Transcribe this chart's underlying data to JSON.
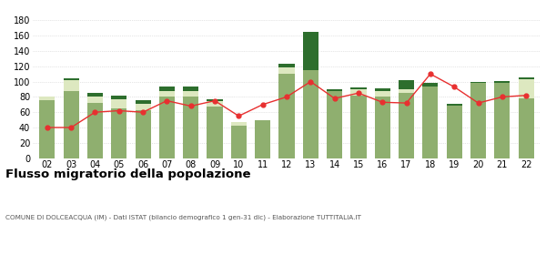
{
  "years": [
    "02",
    "03",
    "04",
    "05",
    "06",
    "07",
    "08",
    "09",
    "10",
    "11",
    "12",
    "13",
    "14",
    "15",
    "16",
    "17",
    "18",
    "19",
    "20",
    "21",
    "22"
  ],
  "iscritti_altri_comuni": [
    76,
    88,
    72,
    65,
    63,
    80,
    80,
    67,
    42,
    50,
    110,
    115,
    88,
    82,
    80,
    85,
    93,
    68,
    98,
    98,
    78
  ],
  "iscritti_estero": [
    5,
    14,
    8,
    12,
    8,
    8,
    8,
    8,
    5,
    0,
    8,
    0,
    0,
    8,
    8,
    5,
    0,
    0,
    0,
    0,
    25
  ],
  "iscritti_altri": [
    0,
    2,
    5,
    5,
    5,
    5,
    5,
    2,
    0,
    0,
    5,
    50,
    2,
    2,
    3,
    12,
    5,
    3,
    2,
    3,
    3
  ],
  "cancellati": [
    40,
    40,
    60,
    62,
    60,
    75,
    68,
    75,
    55,
    70,
    80,
    100,
    78,
    85,
    73,
    72,
    110,
    93,
    72,
    80,
    82
  ],
  "color_comuni": "#8faf6f",
  "color_estero": "#dde8c0",
  "color_altri": "#2d6e2d",
  "color_cancellati": "#e83030",
  "title": "Flusso migratorio della popolazione",
  "subtitle": "COMUNE DI DOLCEACQUA (IM) - Dati ISTAT (bilancio demografico 1 gen-31 dic) - Elaborazione TUTTITALIA.IT",
  "ylim": [
    0,
    180
  ],
  "yticks": [
    0,
    20,
    40,
    60,
    80,
    100,
    120,
    140,
    160,
    180
  ],
  "background_color": "#ffffff",
  "grid_color": "#cccccc"
}
